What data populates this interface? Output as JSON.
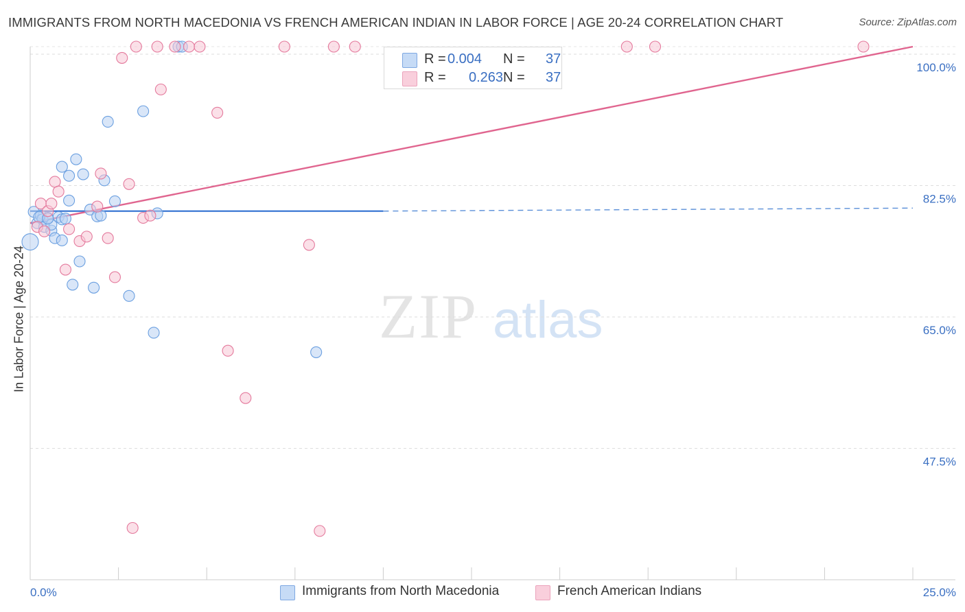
{
  "header": {
    "title": "IMMIGRANTS FROM NORTH MACEDONIA VS FRENCH AMERICAN INDIAN IN LABOR FORCE | AGE 20-24 CORRELATION CHART",
    "source": "Source: ZipAtlas.com"
  },
  "watermark": {
    "zip": "ZIP",
    "atlas": "atlas"
  },
  "legend_stats": [
    {
      "r_label": "R =",
      "r_value": "0.004",
      "n_label": "N =",
      "n_value": "37",
      "color": "#a8c7f0"
    },
    {
      "r_label": "R =",
      "r_value": "0.263",
      "n_label": "N =",
      "n_value": "37",
      "color": "#f5b8cb"
    }
  ],
  "chart_data": {
    "type": "scatter",
    "title": "IMMIGRANTS FROM NORTH MACEDONIA VS FRENCH AMERICAN INDIAN IN LABOR FORCE | AGE 20-24 CORRELATION CHART",
    "xlabel": "",
    "ylabel": "In Labor Force | Age 20-24",
    "xlim": [
      0,
      25
    ],
    "ylim": [
      30,
      101
    ],
    "x_tick_labels": [
      "0.0%",
      "25.0%"
    ],
    "y_ticks": [
      47.5,
      65.0,
      82.5,
      100.0
    ],
    "y_tick_labels": [
      "47.5%",
      "65.0%",
      "82.5%",
      "100.0%"
    ],
    "grid": true,
    "legend": "bottom-center",
    "series": [
      {
        "name": "Immigrants from North Macedonia",
        "color": "#6a9fe0",
        "fill": "#b9d2f3",
        "points": [
          [
            0.1,
            79.0
          ],
          [
            0.0,
            75.0
          ],
          [
            0.2,
            77.5
          ],
          [
            0.3,
            78.5
          ],
          [
            0.35,
            78.0
          ],
          [
            0.5,
            78.2
          ],
          [
            0.4,
            77.0
          ],
          [
            0.6,
            76.5
          ],
          [
            0.7,
            75.5
          ],
          [
            0.8,
            78.3
          ],
          [
            0.9,
            78.0
          ],
          [
            1.0,
            78.1
          ],
          [
            1.1,
            80.5
          ],
          [
            1.1,
            83.8
          ],
          [
            1.3,
            86.0
          ],
          [
            0.9,
            85.0
          ],
          [
            1.5,
            84.0
          ],
          [
            1.7,
            79.3
          ],
          [
            1.9,
            78.4
          ],
          [
            2.0,
            78.5
          ],
          [
            2.1,
            83.2
          ],
          [
            2.2,
            91.0
          ],
          [
            2.4,
            80.4
          ],
          [
            3.2,
            92.4
          ],
          [
            3.6,
            78.8
          ],
          [
            4.2,
            101.0
          ],
          [
            4.3,
            101.0
          ],
          [
            1.4,
            72.4
          ],
          [
            1.2,
            69.3
          ],
          [
            1.8,
            68.9
          ],
          [
            2.8,
            67.8
          ],
          [
            3.5,
            62.9
          ],
          [
            8.1,
            60.3
          ],
          [
            0.6,
            77.3
          ],
          [
            0.9,
            75.2
          ],
          [
            0.25,
            78.3
          ],
          [
            0.5,
            78.1
          ]
        ],
        "trend": {
          "solid": [
            [
              0,
              79.1
            ],
            [
              10,
              79.1
            ]
          ],
          "dashed": [
            [
              10,
              79.1
            ],
            [
              25,
              79.5
            ]
          ]
        }
      },
      {
        "name": "French American Indians",
        "color": "#e4799c",
        "fill": "#f7c6d5",
        "points": [
          [
            0.2,
            77.0
          ],
          [
            0.3,
            80.1
          ],
          [
            0.5,
            79.1
          ],
          [
            0.4,
            76.4
          ],
          [
            0.7,
            83.0
          ],
          [
            0.6,
            80.1
          ],
          [
            0.8,
            81.7
          ],
          [
            1.1,
            76.7
          ],
          [
            1.4,
            75.1
          ],
          [
            1.6,
            75.7
          ],
          [
            1.9,
            79.7
          ],
          [
            2.0,
            84.1
          ],
          [
            2.2,
            75.5
          ],
          [
            2.4,
            70.3
          ],
          [
            2.6,
            99.5
          ],
          [
            3.0,
            101.0
          ],
          [
            3.2,
            78.2
          ],
          [
            3.6,
            101.0
          ],
          [
            3.7,
            95.3
          ],
          [
            4.1,
            101.0
          ],
          [
            4.5,
            101.0
          ],
          [
            4.8,
            101.0
          ],
          [
            5.3,
            92.2
          ],
          [
            5.6,
            60.5
          ],
          [
            6.1,
            54.2
          ],
          [
            7.2,
            101.0
          ],
          [
            7.9,
            74.6
          ],
          [
            8.6,
            101.0
          ],
          [
            9.2,
            101.0
          ],
          [
            16.9,
            101.0
          ],
          [
            17.7,
            101.0
          ],
          [
            23.6,
            101.0
          ],
          [
            1.0,
            71.3
          ],
          [
            2.8,
            82.7
          ],
          [
            3.4,
            78.5
          ],
          [
            2.9,
            36.9
          ],
          [
            8.2,
            36.5
          ]
        ],
        "trend": {
          "solid": [
            [
              0,
              77.5
            ],
            [
              25,
              101.0
            ]
          ]
        }
      }
    ]
  }
}
